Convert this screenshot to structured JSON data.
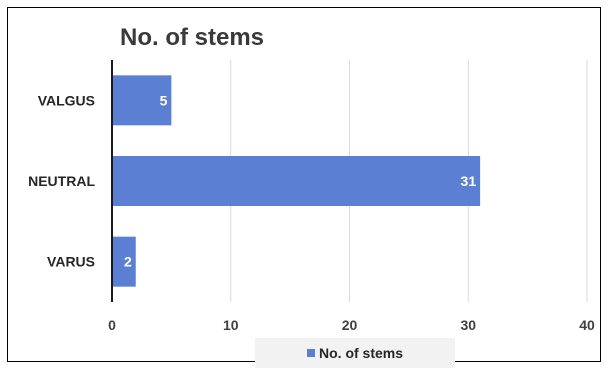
{
  "chart_data": {
    "type": "bar",
    "orientation": "horizontal",
    "title": "No. of stems",
    "categories": [
      "VALGUS",
      "NEUTRAL",
      "VARUS"
    ],
    "series": [
      {
        "name": "No. of stems",
        "values": [
          5,
          31,
          2
        ],
        "color": "#5b80d3"
      }
    ],
    "xlim": [
      0,
      40
    ],
    "x_ticks": [
      0,
      10,
      20,
      30,
      40
    ],
    "grid": true,
    "legend_position": "bottom",
    "data_labels": true,
    "xlabel": "",
    "ylabel": ""
  }
}
